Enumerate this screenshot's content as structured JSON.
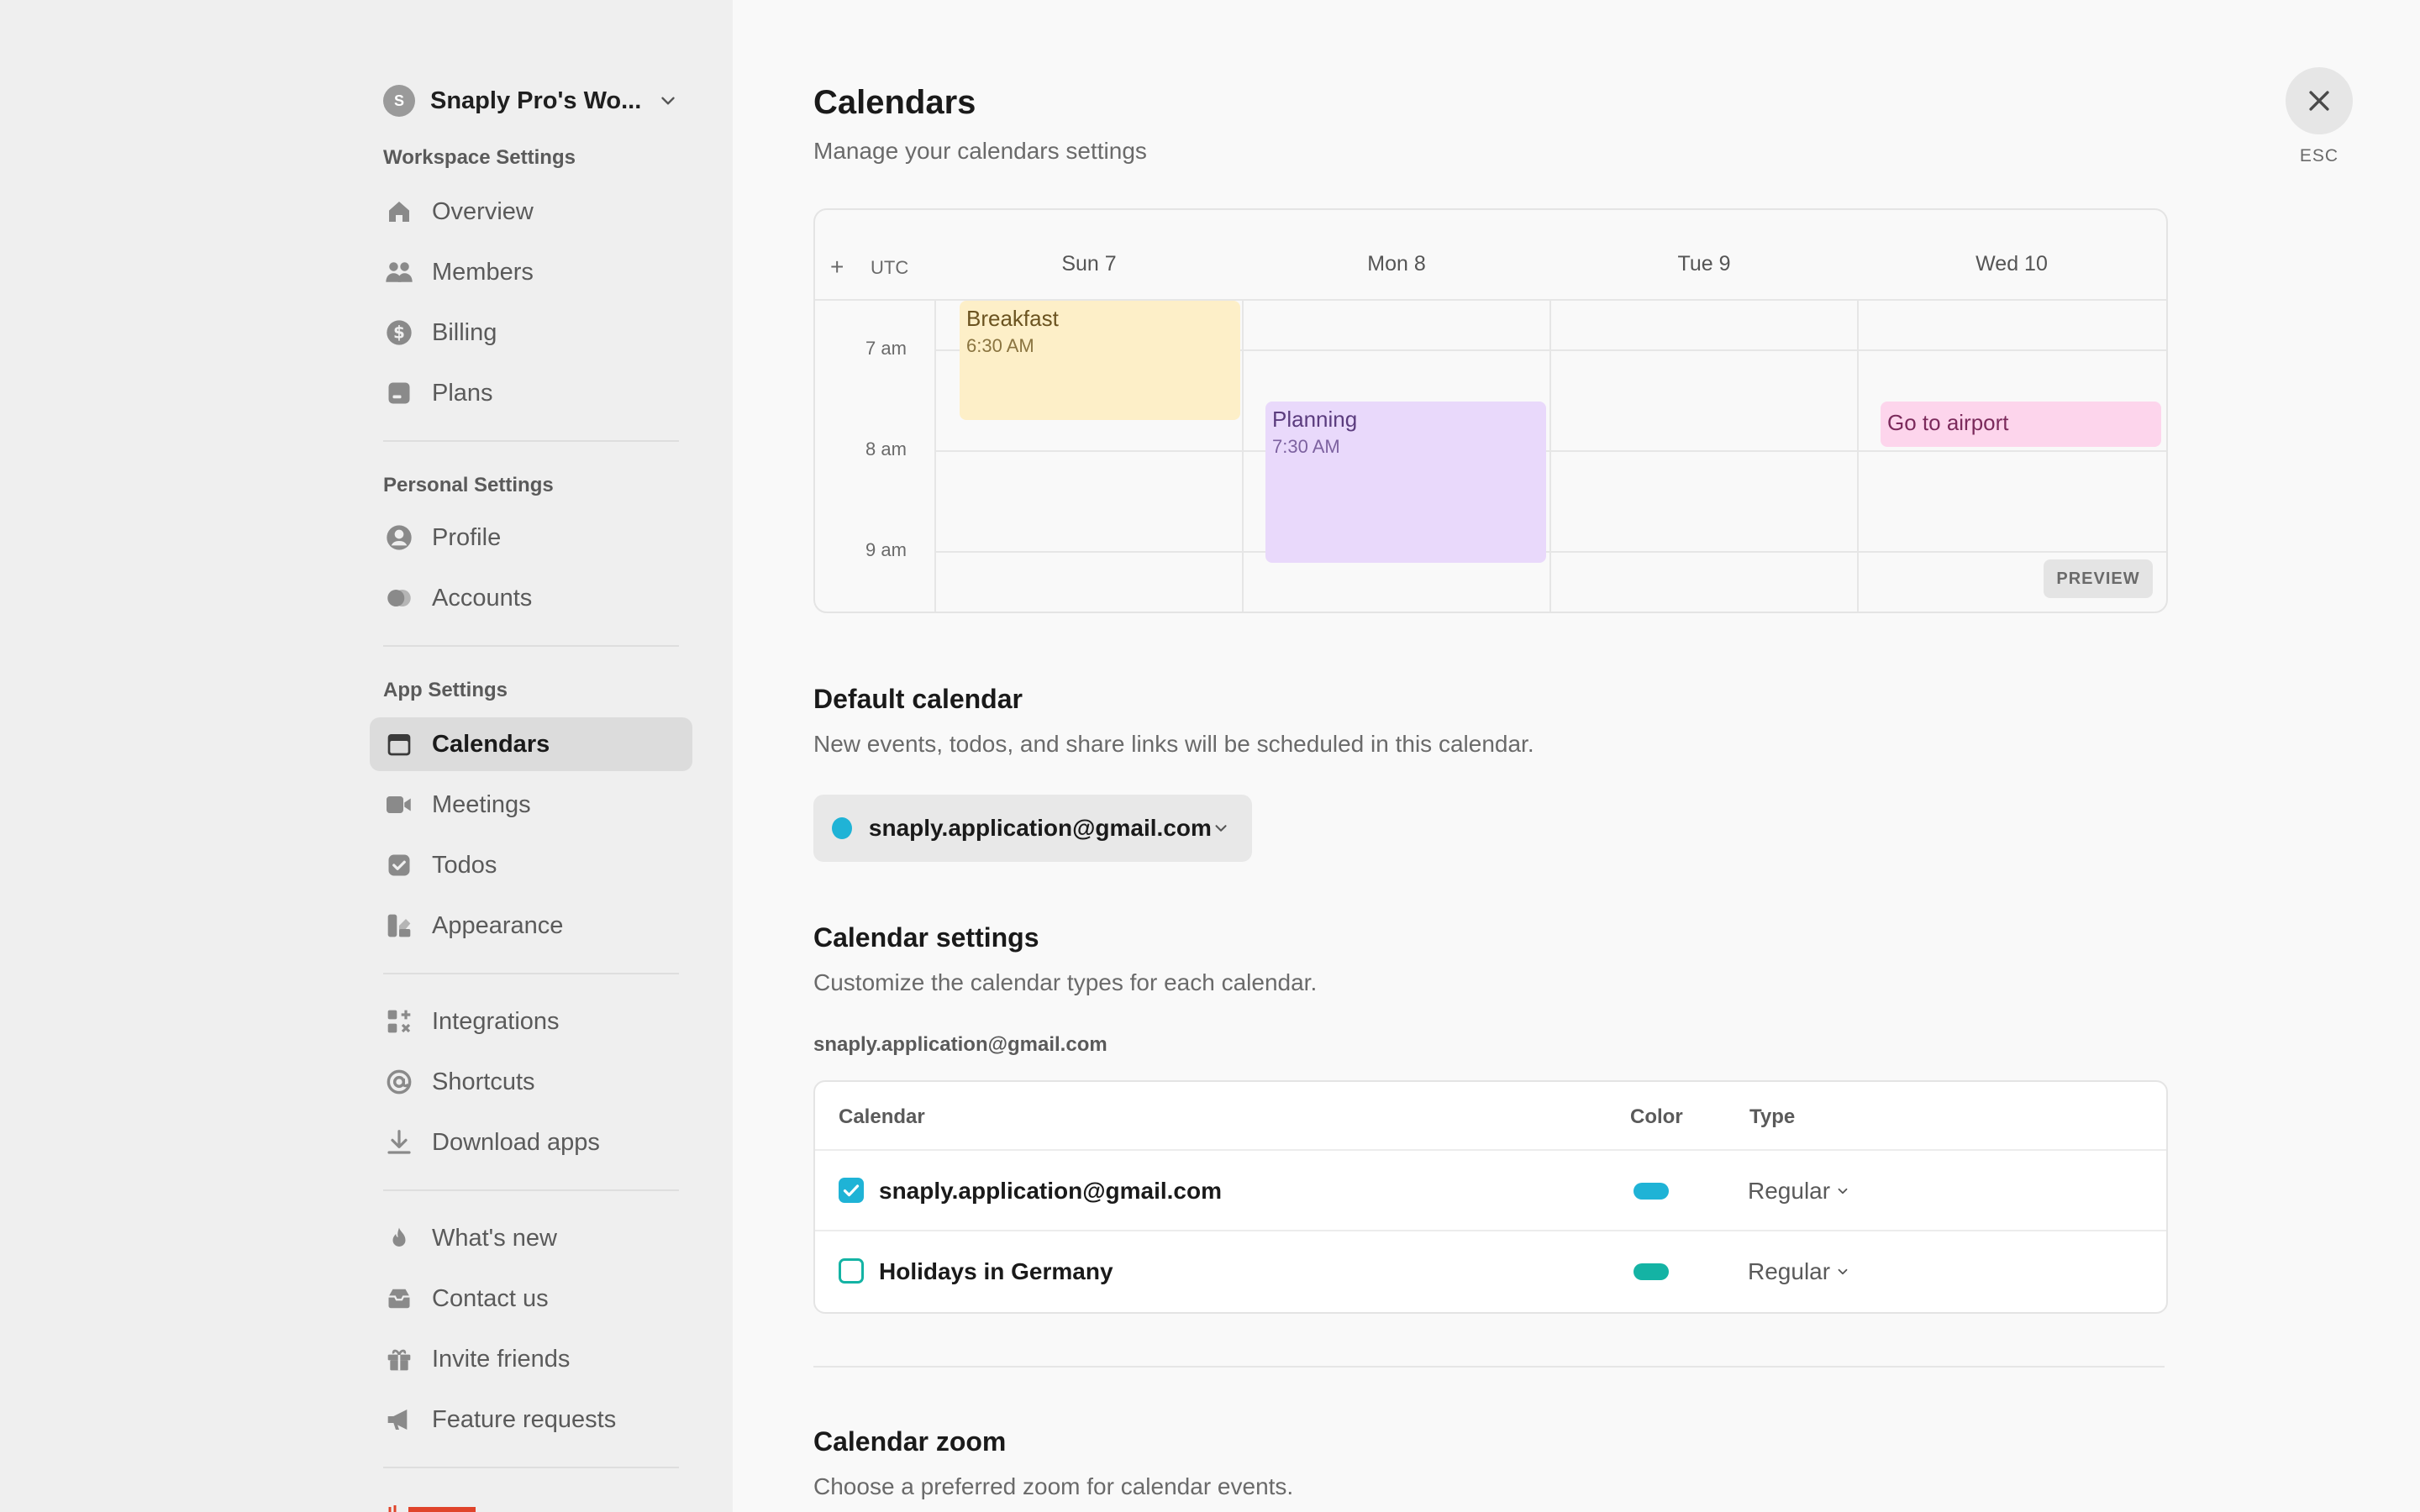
{
  "workspace": {
    "avatar_letter": "S",
    "name": "Snaply Pro's Wo..."
  },
  "sidebar": {
    "sections": [
      {
        "label": "Workspace Settings"
      },
      {
        "label": "Personal Settings"
      },
      {
        "label": "App Settings"
      }
    ],
    "items": [
      {
        "label": "Overview",
        "icon": "home-icon"
      },
      {
        "label": "Members",
        "icon": "members-icon"
      },
      {
        "label": "Billing",
        "icon": "dollar-icon"
      },
      {
        "label": "Plans",
        "icon": "plans-icon"
      },
      {
        "label": "Profile",
        "icon": "user-icon"
      },
      {
        "label": "Accounts",
        "icon": "accounts-icon"
      },
      {
        "label": "Calendars",
        "icon": "calendar-icon",
        "active": true
      },
      {
        "label": "Meetings",
        "icon": "video-icon"
      },
      {
        "label": "Todos",
        "icon": "check-icon"
      },
      {
        "label": "Appearance",
        "icon": "appearance-icon"
      },
      {
        "label": "Integrations",
        "icon": "integrations-icon"
      },
      {
        "label": "Shortcuts",
        "icon": "at-icon"
      },
      {
        "label": "Download apps",
        "icon": "download-icon"
      },
      {
        "label": "What's new",
        "icon": "flame-icon"
      },
      {
        "label": "Contact us",
        "icon": "inbox-icon"
      },
      {
        "label": "Invite friends",
        "icon": "gift-icon"
      },
      {
        "label": "Feature requests",
        "icon": "megaphone-icon"
      }
    ]
  },
  "page": {
    "title": "Calendars",
    "subtitle": "Manage your calendars settings",
    "close_label": "ESC"
  },
  "preview": {
    "timezone": "UTC",
    "add_symbol": "+",
    "days": [
      "Sun  7",
      "Mon  8",
      "Tue  9",
      "Wed 10"
    ],
    "times": [
      "7 am",
      "8 am",
      "9 am"
    ],
    "events": [
      {
        "title": "Breakfast",
        "time": "6:30 AM"
      },
      {
        "title": "Planning",
        "time": "7:30 AM"
      },
      {
        "title": "Go to airport"
      }
    ],
    "badge": "PREVIEW"
  },
  "default_calendar": {
    "title": "Default calendar",
    "description": "New events, todos, and share links will be scheduled in this calendar.",
    "selected": "snaply.application@gmail.com",
    "selected_color": "#1fb3d6"
  },
  "calendar_settings": {
    "title": "Calendar settings",
    "description": "Customize the calendar types for each calendar.",
    "account": "snaply.application@gmail.com",
    "columns": [
      "Calendar",
      "Color",
      "Type"
    ],
    "rows": [
      {
        "name": "snaply.application@gmail.com",
        "checked": true,
        "color": "#1fb3d6",
        "type": "Regular"
      },
      {
        "name": "Holidays in Germany",
        "checked": false,
        "color": "#14b3a4",
        "type": "Regular"
      }
    ]
  },
  "calendar_zoom": {
    "title": "Calendar zoom",
    "description": "Choose a preferred zoom for calendar events."
  }
}
